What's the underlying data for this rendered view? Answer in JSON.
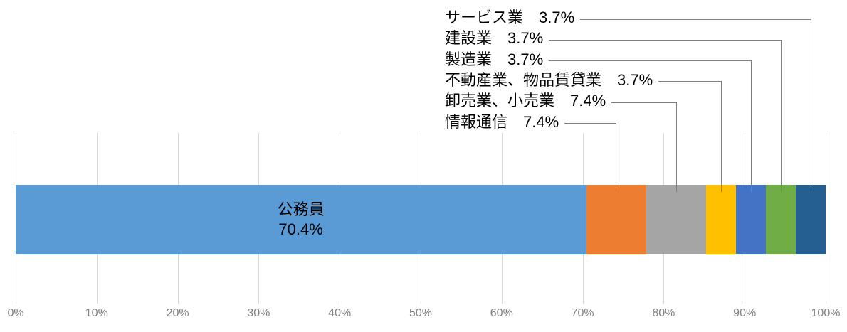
{
  "chart_data": {
    "type": "bar",
    "subtype": "stacked-horizontal-100pct",
    "title": "",
    "xlabel": "",
    "ylabel": "",
    "xlim": [
      0,
      100
    ],
    "gridlines": true,
    "axis_tick_labels": [
      "0%",
      "10%",
      "20%",
      "30%",
      "40%",
      "50%",
      "60%",
      "70%",
      "80%",
      "90%",
      "100%"
    ],
    "series": [
      {
        "name": "公務員",
        "value": 70.4,
        "value_label": "70.4%",
        "color": "#5B9BD5",
        "label_position": "inside"
      },
      {
        "name": "情報通信",
        "value": 7.4,
        "value_label": "7.4%",
        "color": "#ED7D31",
        "label_position": "callout"
      },
      {
        "name": "卸売業、小売業",
        "value": 7.4,
        "value_label": "7.4%",
        "color": "#A5A5A5",
        "label_position": "callout"
      },
      {
        "name": "不動産業、物品賃貸業",
        "value": 3.7,
        "value_label": "3.7%",
        "color": "#FFC000",
        "label_position": "callout"
      },
      {
        "name": "製造業",
        "value": 3.7,
        "value_label": "3.7%",
        "color": "#4472C4",
        "label_position": "callout"
      },
      {
        "name": "建設業",
        "value": 3.7,
        "value_label": "3.7%",
        "color": "#70AD47",
        "label_position": "callout"
      },
      {
        "name": "サービス業",
        "value": 3.7,
        "value_label": "3.7%",
        "color": "#255E91",
        "label_position": "callout"
      }
    ],
    "callout_order_top_to_bottom": [
      6,
      5,
      4,
      3,
      2,
      1
    ],
    "colors": {
      "gridline": "#D9D9D9",
      "axis_text": "#808080",
      "label_text": "#000000",
      "leader_line": "#7F7F7F",
      "background": "#FFFFFF"
    }
  }
}
